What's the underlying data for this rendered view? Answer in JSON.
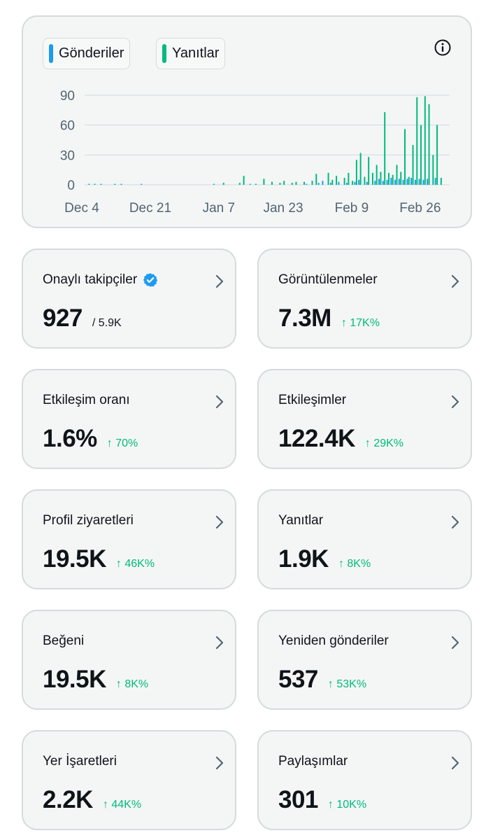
{
  "legend": {
    "posts_label": "Gönderiler",
    "replies_label": "Yanıtlar",
    "posts_color": "#1d9bf0",
    "replies_color": "#00ba7c"
  },
  "info_icon": "info-icon",
  "chart_data": {
    "type": "bar",
    "title": "",
    "xlabel": "",
    "ylabel": "",
    "ylim": [
      0,
      90
    ],
    "yticks": [
      "90",
      "60",
      "30",
      "0"
    ],
    "xticks": [
      "Dec 4",
      "Dec 21",
      "Jan 7",
      "Jan 23",
      "Feb 9",
      "Feb 26"
    ],
    "grid": true,
    "legend_position": "top-left",
    "x_range": [
      "Dec 4",
      "Mar 1"
    ],
    "series": [
      {
        "name": "Gönderiler",
        "color": "#1d9bf0",
        "points": [
          [
            "Dec 6",
            1
          ],
          [
            "Dec 9",
            1
          ],
          [
            "Dec 14",
            1
          ],
          [
            "Dec 19",
            1
          ],
          [
            "Jan 6",
            1
          ],
          [
            "Jan 15",
            1
          ],
          [
            "Jan 29",
            1
          ],
          [
            "Feb 1",
            2
          ],
          [
            "Feb 2",
            4
          ],
          [
            "Feb 4",
            2
          ],
          [
            "Feb 6",
            3
          ],
          [
            "Feb 8",
            2
          ],
          [
            "Feb 10",
            3
          ],
          [
            "Feb 11",
            5
          ],
          [
            "Feb 13",
            3
          ],
          [
            "Feb 15",
            4
          ],
          [
            "Feb 16",
            6
          ],
          [
            "Feb 17",
            4
          ],
          [
            "Feb 18",
            5
          ],
          [
            "Feb 19",
            7
          ],
          [
            "Feb 20",
            5
          ],
          [
            "Feb 21",
            6
          ],
          [
            "Feb 22",
            5
          ],
          [
            "Feb 23",
            6
          ],
          [
            "Feb 24",
            7
          ],
          [
            "Feb 25",
            5
          ],
          [
            "Feb 26",
            6
          ],
          [
            "Feb 27",
            5
          ],
          [
            "Feb 28",
            6
          ],
          [
            "Mar 1",
            7
          ]
        ]
      },
      {
        "name": "Yanıtlar",
        "color": "#00ba7c",
        "points": [
          [
            "Dec 7",
            1
          ],
          [
            "Dec 12",
            1
          ],
          [
            "Jan 8",
            2
          ],
          [
            "Jan 12",
            2
          ],
          [
            "Jan 13",
            9
          ],
          [
            "Jan 16",
            1
          ],
          [
            "Jan 18",
            6
          ],
          [
            "Jan 20",
            3
          ],
          [
            "Jan 22",
            2
          ],
          [
            "Jan 23",
            4
          ],
          [
            "Jan 25",
            2
          ],
          [
            "Jan 26",
            3
          ],
          [
            "Jan 28",
            3
          ],
          [
            "Jan 30",
            4
          ],
          [
            "Jan 31",
            11
          ],
          [
            "Feb 3",
            12
          ],
          [
            "Feb 4",
            5
          ],
          [
            "Feb 5",
            9
          ],
          [
            "Feb 7",
            7
          ],
          [
            "Feb 8",
            12
          ],
          [
            "Feb 9",
            4
          ],
          [
            "Feb 10",
            25
          ],
          [
            "Feb 11",
            32
          ],
          [
            "Feb 12",
            8
          ],
          [
            "Feb 13",
            28
          ],
          [
            "Feb 14",
            12
          ],
          [
            "Feb 15",
            20
          ],
          [
            "Feb 16",
            13
          ],
          [
            "Feb 17",
            73
          ],
          [
            "Feb 18",
            12
          ],
          [
            "Feb 19",
            10
          ],
          [
            "Feb 20",
            20
          ],
          [
            "Feb 21",
            13
          ],
          [
            "Feb 22",
            56
          ],
          [
            "Feb 23",
            8
          ],
          [
            "Feb 24",
            40
          ],
          [
            "Feb 25",
            88
          ],
          [
            "Feb 26",
            60
          ],
          [
            "Feb 27",
            89
          ],
          [
            "Feb 28",
            81
          ],
          [
            "Feb 29",
            30
          ],
          [
            "Mar 1",
            60
          ],
          [
            "Mar 2",
            7
          ]
        ]
      }
    ]
  },
  "stats": [
    {
      "label": "Onaylı takipçiler",
      "value": "927",
      "sub": "/ 5.9K",
      "change": ""
    },
    {
      "label": "Görüntülenmeler",
      "value": "7.3M",
      "sub": "",
      "change": "↑ 17K%"
    },
    {
      "label": "Etkileşim oranı",
      "value": "1.6%",
      "sub": "",
      "change": "↑ 70%"
    },
    {
      "label": "Etkileşimler",
      "value": "122.4K",
      "sub": "",
      "change": "↑ 29K%"
    },
    {
      "label": "Profil ziyaretleri",
      "value": "19.5K",
      "sub": "",
      "change": "↑ 46K%"
    },
    {
      "label": "Yanıtlar",
      "value": "1.9K",
      "sub": "",
      "change": "↑ 8K%"
    },
    {
      "label": "Beğeni",
      "value": "19.5K",
      "sub": "",
      "change": "↑ 8K%"
    },
    {
      "label": "Yeniden gönderiler",
      "value": "537",
      "sub": "",
      "change": "↑ 53K%"
    },
    {
      "label": "Yer İşaretleri",
      "value": "2.2K",
      "sub": "",
      "change": "↑ 44K%"
    },
    {
      "label": "Paylaşımlar",
      "value": "301",
      "sub": "",
      "change": "↑ 10K%"
    }
  ]
}
